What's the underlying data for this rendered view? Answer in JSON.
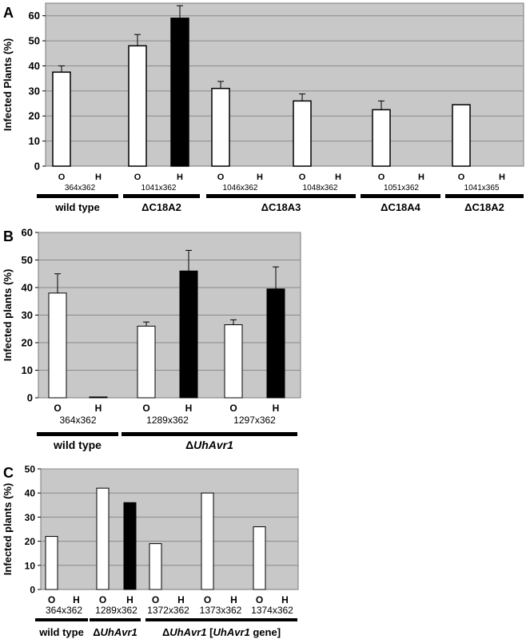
{
  "colors": {
    "plot_background": "#c8c8c8",
    "gridline": "#8a8a8a",
    "O_bar": "#ffffff",
    "H_bar": "#000000",
    "group_line": "#000000"
  },
  "chart_data": [
    {
      "panel": "A",
      "type": "bar",
      "ylabel": "Infected Plants (%)",
      "ylim": [
        0,
        65
      ],
      "yticks": [
        0,
        10,
        20,
        30,
        40,
        50,
        60
      ],
      "grid": true,
      "categories": [
        "O",
        "H",
        "O",
        "H",
        "O",
        "H",
        "O",
        "H",
        "O",
        "H",
        "O",
        "H"
      ],
      "values": [
        37.5,
        0,
        48,
        59,
        31,
        0,
        26,
        0,
        22.5,
        0,
        24.5,
        0
      ],
      "errors": [
        2.5,
        null,
        4.5,
        5,
        2.8,
        null,
        2.8,
        null,
        3.5,
        null,
        null,
        null
      ],
      "bar_types": [
        "O",
        "H",
        "O",
        "H",
        "O",
        "H",
        "O",
        "H",
        "O",
        "H",
        "O",
        "H"
      ],
      "cross_labels": [
        {
          "text": "364x362",
          "pair": 0
        },
        {
          "text": "1041x362",
          "pair": 1
        },
        {
          "text": "1046x362",
          "pair": 2
        },
        {
          "text": "1048x362",
          "pair": 3
        },
        {
          "text": "1051x362",
          "pair": 4
        },
        {
          "text": "1041x365",
          "pair": 5
        }
      ],
      "groups": [
        {
          "label": "wild type",
          "pairs": [
            0,
            0
          ]
        },
        {
          "label": "ΔC18A2",
          "pairs": [
            1,
            1
          ]
        },
        {
          "label": "ΔC18A3",
          "pairs": [
            2,
            3
          ]
        },
        {
          "label": "ΔC18A4",
          "pairs": [
            4,
            4
          ]
        },
        {
          "label": "ΔC18A2",
          "pairs": [
            5,
            5
          ]
        }
      ]
    },
    {
      "panel": "B",
      "type": "bar",
      "ylabel": "Infected plants (%)",
      "ylim": [
        0,
        60
      ],
      "yticks": [
        0,
        10,
        20,
        30,
        40,
        50,
        60
      ],
      "grid": true,
      "categories": [
        "O",
        "H",
        "O",
        "H",
        "O",
        "H"
      ],
      "values": [
        38,
        0.3,
        26,
        46,
        26.5,
        39.5
      ],
      "errors": [
        7,
        null,
        1.5,
        7.5,
        1.8,
        8
      ],
      "bar_types": [
        "O",
        "H",
        "O",
        "H",
        "O",
        "H"
      ],
      "cross_labels": [
        {
          "text": "364x362",
          "pair": 0
        },
        {
          "text": "1289x362",
          "pair": 1
        },
        {
          "text": "1297x362",
          "pair": 2
        }
      ],
      "groups": [
        {
          "label": "wild type",
          "pairs": [
            0,
            0
          ]
        },
        {
          "label": "ΔUhAvr1",
          "pairs": [
            1,
            2
          ]
        }
      ]
    },
    {
      "panel": "C",
      "type": "bar",
      "ylabel": "Infected plants (%)",
      "ylim": [
        0,
        50
      ],
      "yticks": [
        0,
        10,
        20,
        30,
        40,
        50
      ],
      "grid": true,
      "categories": [
        "O",
        "H",
        "O",
        "H",
        "O",
        "H",
        "O",
        "H",
        "O",
        "H"
      ],
      "values": [
        22,
        0,
        42,
        36,
        19,
        0,
        40,
        0,
        26,
        0
      ],
      "errors": [
        null,
        null,
        null,
        null,
        null,
        null,
        null,
        null,
        null,
        null
      ],
      "bar_types": [
        "O",
        "H",
        "O",
        "H",
        "O",
        "H",
        "O",
        "H",
        "O",
        "H"
      ],
      "cross_labels": [
        {
          "text": "364x362",
          "pair": 0
        },
        {
          "text": "1289x362",
          "pair": 1
        },
        {
          "text": "1372x362",
          "pair": 2
        },
        {
          "text": "1373x362",
          "pair": 3
        },
        {
          "text": "1374x362",
          "pair": 4
        }
      ],
      "groups": [
        {
          "label": "wild type",
          "pairs": [
            0,
            0
          ]
        },
        {
          "label": "ΔUhAvr1",
          "pairs": [
            1,
            1
          ]
        },
        {
          "label": "ΔUhAvr1 [UhAvr1 gene]",
          "pairs": [
            2,
            4
          ]
        }
      ]
    }
  ]
}
